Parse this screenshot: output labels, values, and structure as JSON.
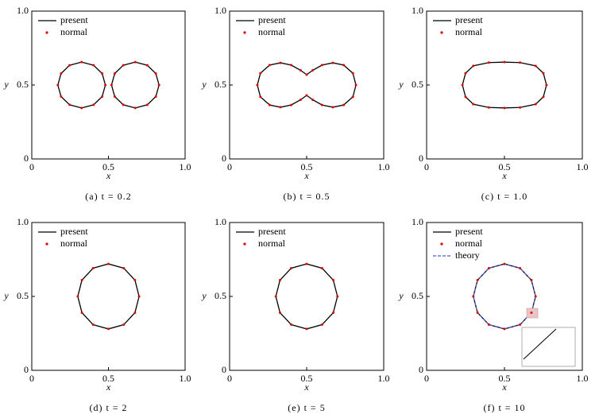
{
  "chart_data": [
    {
      "type": "line",
      "caption": "(a) t = 0.2",
      "xlabel": "x",
      "ylabel": "y",
      "xlim": [
        0,
        1
      ],
      "ylim": [
        0,
        1
      ],
      "xticks": [
        0,
        0.5,
        {
          "value": 1,
          "label": "1.0"
        }
      ],
      "yticks": [
        0,
        0.5,
        {
          "value": 1,
          "label": "1.0"
        }
      ],
      "series": [
        {
          "name": "present",
          "color": "#000000",
          "style": "line",
          "x": [
            0.48,
            0.459,
            0.403,
            0.325,
            0.247,
            0.191,
            0.17,
            0.191,
            0.247,
            0.325,
            0.403,
            0.459,
            0.48,
            null,
            0.83,
            0.809,
            0.753,
            0.675,
            0.597,
            0.541,
            0.52,
            0.541,
            0.597,
            0.675,
            0.753,
            0.809,
            0.83
          ],
          "values": [
            0.5,
            0.578,
            0.634,
            0.655,
            0.634,
            0.578,
            0.5,
            0.422,
            0.366,
            0.345,
            0.366,
            0.422,
            0.5,
            null,
            0.5,
            0.578,
            0.634,
            0.655,
            0.634,
            0.578,
            0.5,
            0.422,
            0.366,
            0.345,
            0.366,
            0.422,
            0.5
          ]
        },
        {
          "name": "normal",
          "color": "#e00000",
          "style": "markers",
          "x": [
            0.48,
            0.459,
            0.403,
            0.325,
            0.247,
            0.191,
            0.17,
            0.191,
            0.247,
            0.325,
            0.403,
            0.459,
            0.83,
            0.809,
            0.753,
            0.675,
            0.597,
            0.541,
            0.52,
            0.541,
            0.597,
            0.675,
            0.753,
            0.809
          ],
          "values": [
            0.5,
            0.578,
            0.634,
            0.655,
            0.634,
            0.578,
            0.5,
            0.422,
            0.366,
            0.345,
            0.366,
            0.422,
            0.5,
            0.578,
            0.634,
            0.655,
            0.634,
            0.578,
            0.5,
            0.422,
            0.366,
            0.345,
            0.366,
            0.422
          ]
        }
      ]
    },
    {
      "type": "line",
      "caption": "(b) t = 0.5",
      "xlabel": "x",
      "ylabel": "y",
      "xlim": [
        0,
        1
      ],
      "ylim": [
        0,
        1
      ],
      "xticks": [
        0,
        0.5,
        {
          "value": 1,
          "label": "1.0"
        }
      ],
      "yticks": [
        0,
        0.5,
        {
          "value": 1,
          "label": "1.0"
        }
      ],
      "series": [
        {
          "name": "present",
          "color": "#000000",
          "style": "line",
          "x": [
            0.82,
            0.8,
            0.74,
            0.67,
            0.6,
            0.54,
            0.5,
            0.46,
            0.4,
            0.33,
            0.26,
            0.2,
            0.18,
            0.2,
            0.26,
            0.33,
            0.4,
            0.46,
            0.5,
            0.54,
            0.6,
            0.67,
            0.74,
            0.8,
            0.82
          ],
          "values": [
            0.5,
            0.58,
            0.635,
            0.65,
            0.635,
            0.6,
            0.57,
            0.6,
            0.635,
            0.65,
            0.635,
            0.58,
            0.5,
            0.42,
            0.365,
            0.35,
            0.365,
            0.4,
            0.43,
            0.4,
            0.365,
            0.35,
            0.365,
            0.42,
            0.5
          ]
        },
        {
          "name": "normal",
          "color": "#e00000",
          "style": "markers",
          "x": [
            0.82,
            0.8,
            0.74,
            0.67,
            0.6,
            0.54,
            0.5,
            0.46,
            0.4,
            0.33,
            0.26,
            0.2,
            0.18,
            0.2,
            0.26,
            0.33,
            0.4,
            0.46,
            0.5,
            0.54,
            0.6,
            0.67,
            0.74,
            0.8
          ],
          "values": [
            0.5,
            0.58,
            0.635,
            0.65,
            0.635,
            0.6,
            0.57,
            0.6,
            0.635,
            0.65,
            0.635,
            0.58,
            0.5,
            0.42,
            0.365,
            0.35,
            0.365,
            0.4,
            0.43,
            0.4,
            0.365,
            0.35,
            0.365,
            0.42
          ]
        }
      ]
    },
    {
      "type": "line",
      "caption": "(c) t = 1.0",
      "xlabel": "x",
      "ylabel": "y",
      "xlim": [
        0,
        1
      ],
      "ylim": [
        0,
        1
      ],
      "xticks": [
        0,
        0.5,
        {
          "value": 1,
          "label": "1.0"
        }
      ],
      "yticks": [
        0,
        0.5,
        {
          "value": 1,
          "label": "1.0"
        }
      ],
      "series": [
        {
          "name": "present",
          "color": "#000000",
          "style": "line",
          "x": [
            0.77,
            0.75,
            0.7,
            0.6,
            0.5,
            0.4,
            0.3,
            0.25,
            0.23,
            0.25,
            0.3,
            0.4,
            0.5,
            0.6,
            0.7,
            0.75,
            0.77
          ],
          "values": [
            0.5,
            0.58,
            0.63,
            0.652,
            0.655,
            0.652,
            0.63,
            0.58,
            0.5,
            0.42,
            0.37,
            0.348,
            0.345,
            0.348,
            0.37,
            0.42,
            0.5
          ]
        },
        {
          "name": "normal",
          "color": "#e00000",
          "style": "markers",
          "x": [
            0.77,
            0.75,
            0.7,
            0.6,
            0.5,
            0.4,
            0.3,
            0.25,
            0.23,
            0.25,
            0.3,
            0.4,
            0.5,
            0.6,
            0.7,
            0.75
          ],
          "values": [
            0.5,
            0.58,
            0.63,
            0.652,
            0.655,
            0.652,
            0.63,
            0.58,
            0.5,
            0.42,
            0.37,
            0.348,
            0.345,
            0.348,
            0.37,
            0.42
          ]
        }
      ]
    },
    {
      "type": "line",
      "caption": "(d) t = 2",
      "xlabel": "x",
      "ylabel": "y",
      "xlim": [
        0,
        1
      ],
      "ylim": [
        0,
        1
      ],
      "xticks": [
        0,
        0.5,
        {
          "value": 1,
          "label": "1.0"
        }
      ],
      "yticks": [
        0,
        0.5,
        {
          "value": 1,
          "label": "1.0"
        }
      ],
      "series": [
        {
          "name": "present",
          "color": "#000000",
          "style": "line",
          "x": [
            0.7,
            0.673,
            0.6,
            0.5,
            0.4,
            0.327,
            0.3,
            0.327,
            0.4,
            0.5,
            0.6,
            0.673,
            0.7
          ],
          "values": [
            0.5,
            0.61,
            0.691,
            0.72,
            0.691,
            0.61,
            0.5,
            0.39,
            0.309,
            0.28,
            0.309,
            0.39,
            0.5
          ]
        },
        {
          "name": "normal",
          "color": "#e00000",
          "style": "markers",
          "x": [
            0.7,
            0.673,
            0.6,
            0.5,
            0.4,
            0.327,
            0.3,
            0.327,
            0.4,
            0.5,
            0.6,
            0.673
          ],
          "values": [
            0.5,
            0.61,
            0.691,
            0.72,
            0.691,
            0.61,
            0.5,
            0.39,
            0.309,
            0.28,
            0.309,
            0.39
          ]
        }
      ]
    },
    {
      "type": "line",
      "caption": "(e) t = 5",
      "xlabel": "x",
      "ylabel": "y",
      "xlim": [
        0,
        1
      ],
      "ylim": [
        0,
        1
      ],
      "xticks": [
        0,
        0.5,
        {
          "value": 1,
          "label": "1.0"
        }
      ],
      "yticks": [
        0,
        0.5,
        {
          "value": 1,
          "label": "1.0"
        }
      ],
      "series": [
        {
          "name": "present",
          "color": "#000000",
          "style": "line",
          "x": [
            0.7,
            0.673,
            0.6,
            0.5,
            0.4,
            0.327,
            0.3,
            0.327,
            0.4,
            0.5,
            0.6,
            0.673,
            0.7
          ],
          "values": [
            0.5,
            0.61,
            0.691,
            0.72,
            0.691,
            0.61,
            0.5,
            0.39,
            0.309,
            0.28,
            0.309,
            0.39,
            0.5
          ]
        },
        {
          "name": "normal",
          "color": "#e00000",
          "style": "markers",
          "x": [
            0.7,
            0.673,
            0.6,
            0.5,
            0.4,
            0.327,
            0.3,
            0.327,
            0.4,
            0.5,
            0.6,
            0.673
          ],
          "values": [
            0.5,
            0.61,
            0.691,
            0.72,
            0.691,
            0.61,
            0.5,
            0.39,
            0.309,
            0.28,
            0.309,
            0.39
          ]
        }
      ]
    },
    {
      "type": "line",
      "caption": "(f) t = 10",
      "xlabel": "x",
      "ylabel": "y",
      "xlim": [
        0,
        1
      ],
      "ylim": [
        0,
        1
      ],
      "xticks": [
        0,
        0.5,
        {
          "value": 1,
          "label": "1.0"
        }
      ],
      "yticks": [
        0,
        0.5,
        {
          "value": 1,
          "label": "1.0"
        }
      ],
      "series": [
        {
          "name": "present",
          "color": "#000000",
          "style": "line",
          "x": [
            0.7,
            0.673,
            0.6,
            0.5,
            0.4,
            0.327,
            0.3,
            0.327,
            0.4,
            0.5,
            0.6,
            0.673,
            0.7
          ],
          "values": [
            0.5,
            0.61,
            0.691,
            0.72,
            0.691,
            0.61,
            0.5,
            0.39,
            0.309,
            0.28,
            0.309,
            0.39,
            0.5
          ]
        },
        {
          "name": "normal",
          "color": "#e00000",
          "style": "markers",
          "x": [
            0.7,
            0.673,
            0.6,
            0.5,
            0.4,
            0.327,
            0.3,
            0.327,
            0.4,
            0.5,
            0.6,
            0.673
          ],
          "values": [
            0.5,
            0.61,
            0.691,
            0.72,
            0.691,
            0.61,
            0.5,
            0.39,
            0.309,
            0.28,
            0.309,
            0.39
          ]
        },
        {
          "name": "theory",
          "color": "#4a5adc",
          "style": "dashed",
          "x": [
            0.7,
            0.673,
            0.6,
            0.5,
            0.4,
            0.327,
            0.3,
            0.327,
            0.4,
            0.5,
            0.6,
            0.673,
            0.7
          ],
          "values": [
            0.5,
            0.61,
            0.691,
            0.72,
            0.691,
            0.61,
            0.5,
            0.39,
            0.309,
            0.28,
            0.309,
            0.39,
            0.5
          ]
        }
      ]
    }
  ]
}
